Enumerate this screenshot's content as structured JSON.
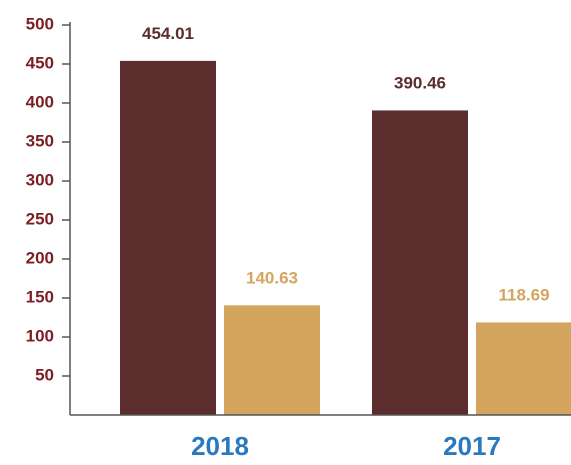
{
  "chart_data": {
    "type": "bar",
    "categories": [
      "2018",
      "2017"
    ],
    "series": [
      {
        "values": [
          454.01,
          390.46
        ],
        "color": "#5c2d2d",
        "label_color": "#5c2d2d"
      },
      {
        "values": [
          140.63,
          118.69
        ],
        "color": "#d4a55f",
        "label_color": "#d4a55f"
      }
    ],
    "data_labels": [
      [
        "454.01",
        "390.46"
      ],
      [
        "140.63",
        "118.69"
      ]
    ],
    "yticks": [
      50,
      100,
      150,
      200,
      250,
      300,
      350,
      400,
      450,
      500
    ],
    "ytick_labels": [
      "50",
      "100",
      "150",
      "200",
      "250",
      "300",
      "350",
      "400",
      "450",
      "500"
    ],
    "ylim": [
      0,
      500
    ],
    "title": "",
    "xlabel": "",
    "ylabel": "",
    "grid": false,
    "legend": "none",
    "colors": {
      "axis": "#555555",
      "tick_label": "#7a1f24",
      "category_label": "#2a78bf"
    }
  }
}
